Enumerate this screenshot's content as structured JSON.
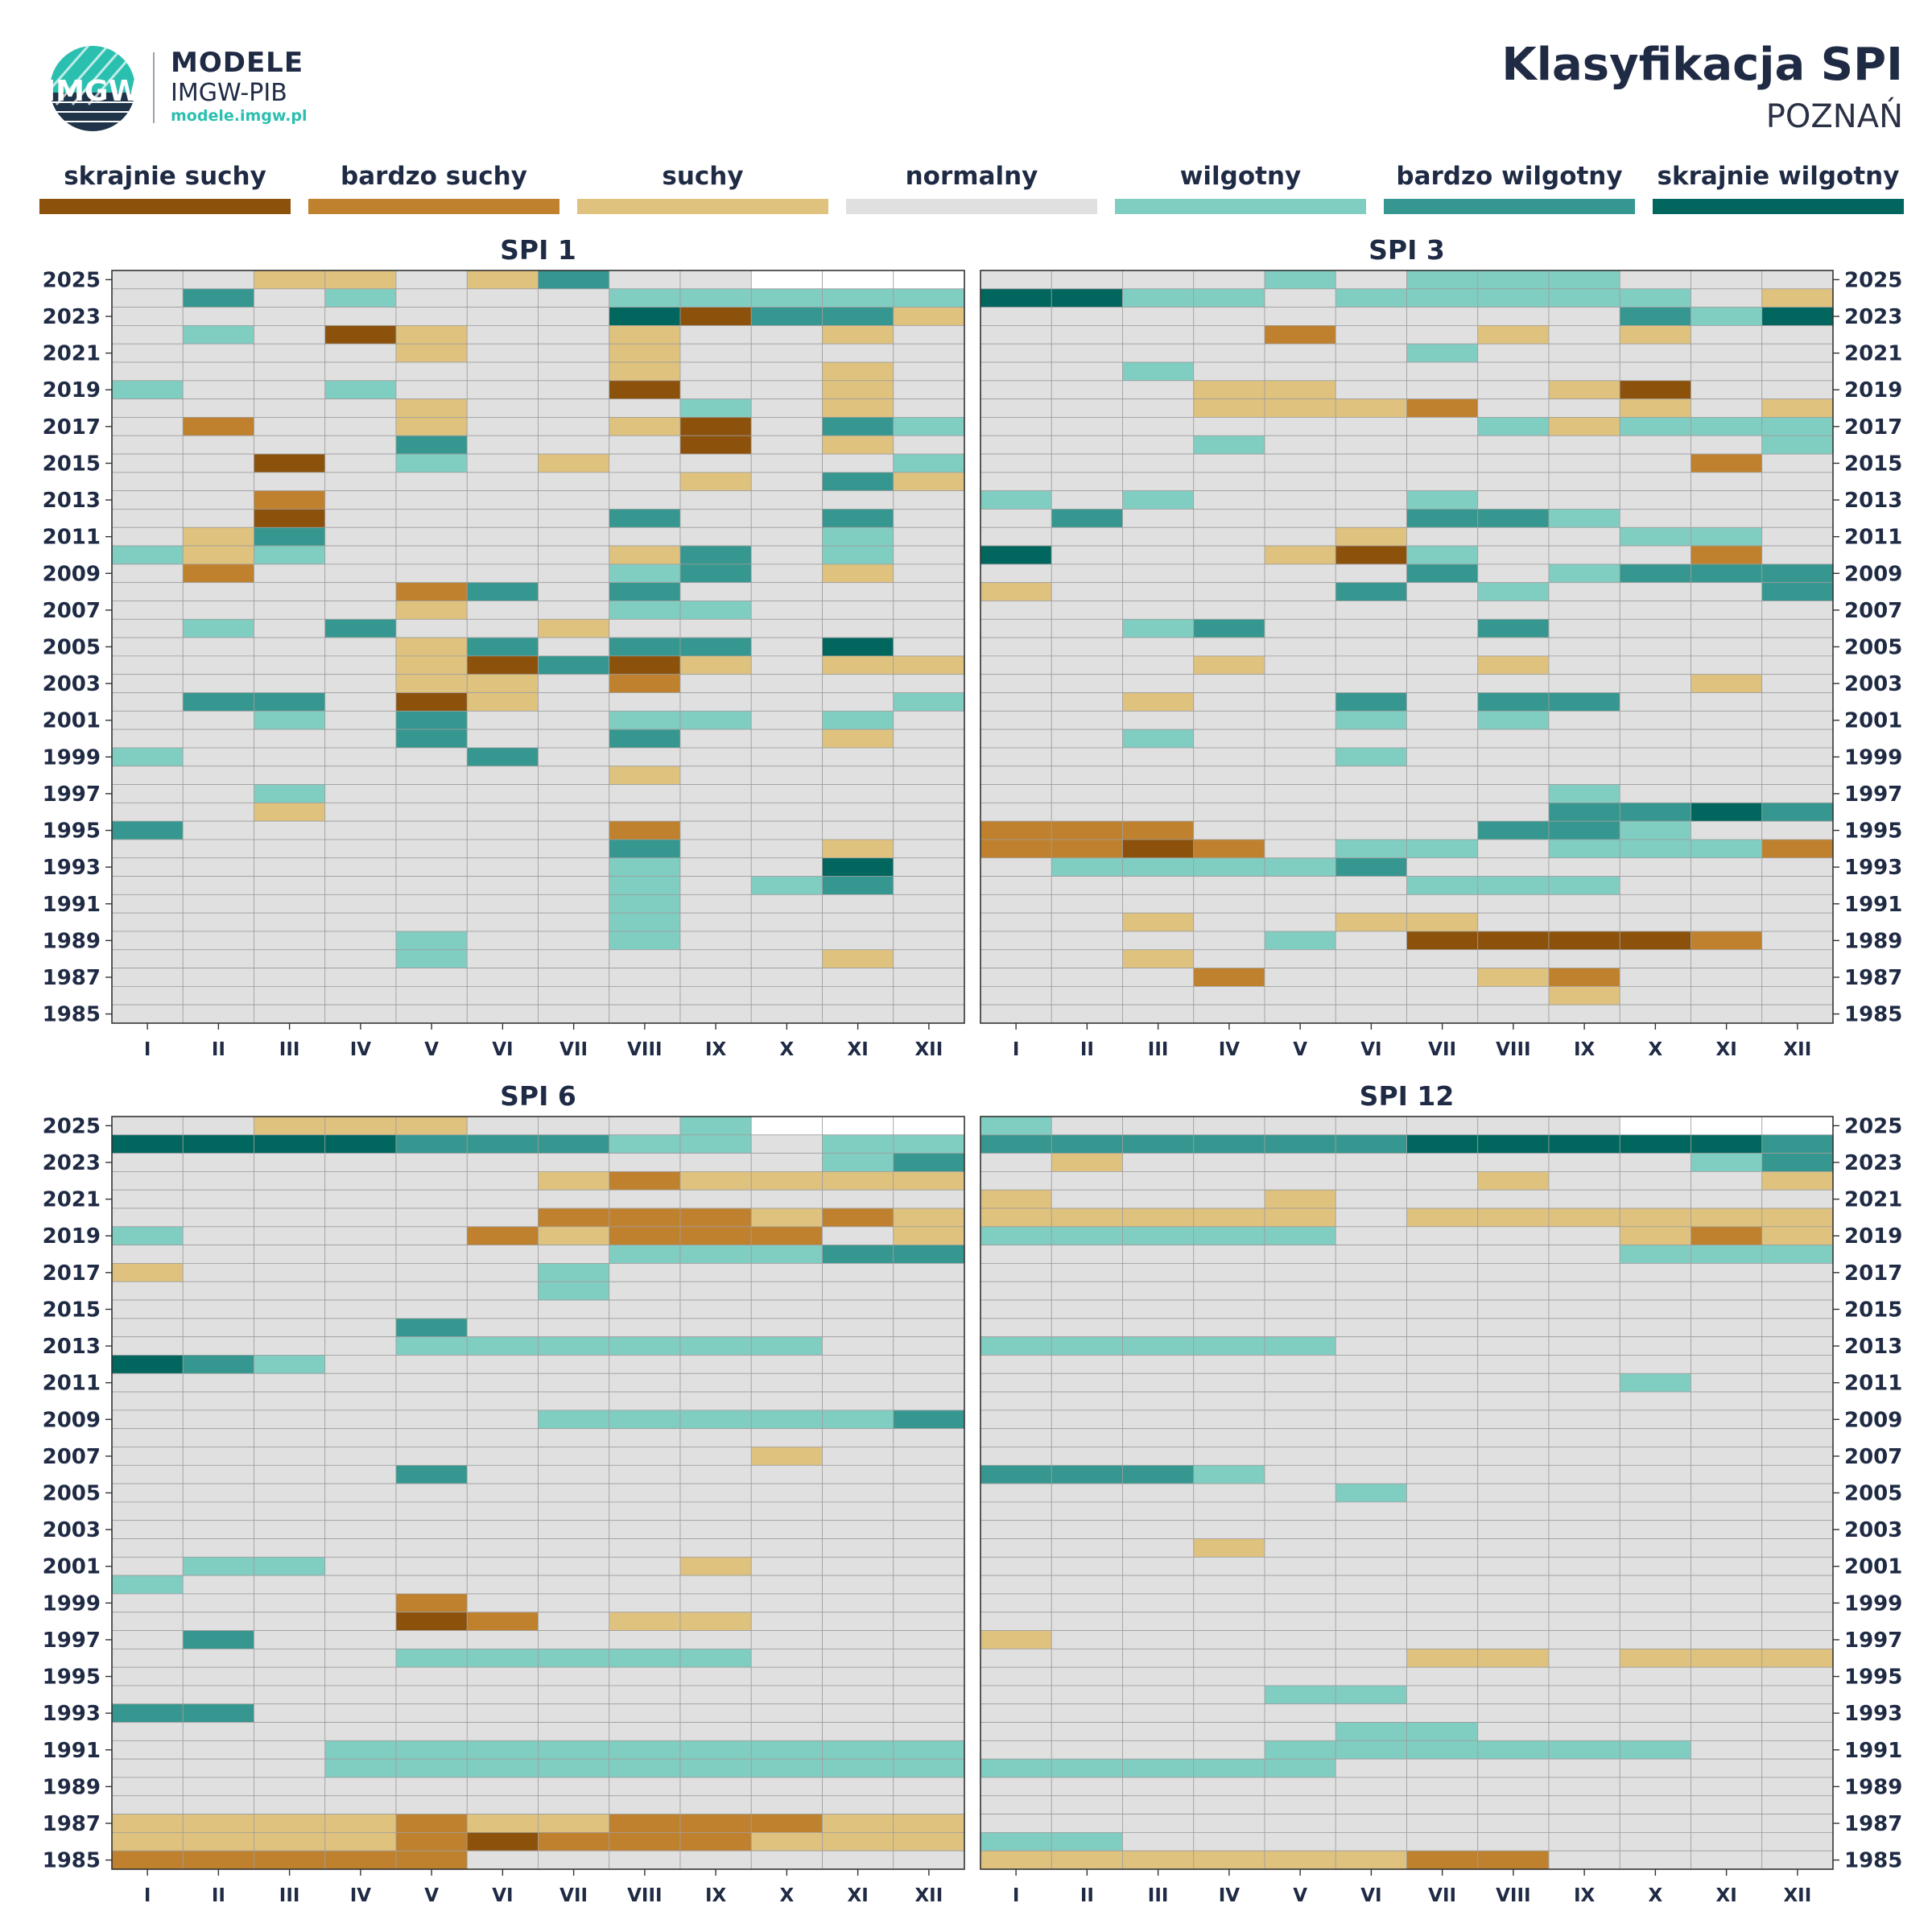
{
  "header": {
    "logo_text": "IMGW",
    "brand_line1": "MODELE",
    "brand_line2": "IMGW-PIB",
    "brand_url": "modele.imgw.pl",
    "title": "Klasyfikacja SPI",
    "subtitle": "POZNAŃ"
  },
  "legend": [
    {
      "label": "skrajnie suchy",
      "color": "#8c510a"
    },
    {
      "label": "bardzo suchy",
      "color": "#bf812d"
    },
    {
      "label": "suchy",
      "color": "#dfc27d"
    },
    {
      "label": "normalny",
      "color": "#e0e0e0"
    },
    {
      "label": "wilgotny",
      "color": "#80cdc1"
    },
    {
      "label": "bardzo wilgotny",
      "color": "#35978f"
    },
    {
      "label": "skrajnie wilgotny",
      "color": "#01665e"
    }
  ],
  "chart_data": [
    {
      "type": "heatmap",
      "title": "SPI 1",
      "x_categories": [
        "I",
        "II",
        "III",
        "IV",
        "V",
        "VI",
        "VII",
        "VIII",
        "IX",
        "X",
        "XI",
        "XII"
      ],
      "y_labels": [
        "2025",
        "2023",
        "2021",
        "2019",
        "2017",
        "2015",
        "2013",
        "2011",
        "2009",
        "2007",
        "2005",
        "2003",
        "2001",
        "1999",
        "1997",
        "1995",
        "1993",
        "1991",
        "1989",
        "1987",
        "1985"
      ],
      "year_range": [
        1985,
        2025
      ],
      "class_key": {
        "0": "no data",
        "1": "skrajnie suchy",
        "2": "bardzo suchy",
        "3": "suchy",
        "4": "normalny",
        "5": "wilgotny",
        "6": "bardzo wilgotny",
        "7": "skrajnie wilgotny"
      },
      "rows_top_to_bottom": [
        "443343644000",
        "464544455555",
        "444444471663",
        "454134434434",
        "444434434444",
        "444444434434",
        "544544414434",
        "444434445434",
        "424434431465",
        "444464441434",
        "441454344445",
        "444444443463",
        "442444444444",
        "441444464464",
        "436444444454",
        "535444436454",
        "424444456434",
        "444426464444",
        "444434455444",
        "454644344444",
        "444436466474",
        "444431613433",
        "444433424444",
        "466413444445",
        "445464455454",
        "444464464434",
        "544446444444",
        "444444434444",
        "445444444444",
        "443444444444",
        "644444424444",
        "444444464434",
        "444444454474",
        "444444454564",
        "444444454444",
        "444444454444",
        "444454454444",
        "444454444434",
        "444444444444",
        "444444444444",
        "444444444444"
      ]
    },
    {
      "type": "heatmap",
      "title": "SPI 3",
      "x_categories": [
        "I",
        "II",
        "III",
        "IV",
        "V",
        "VI",
        "VII",
        "VIII",
        "IX",
        "X",
        "XI",
        "XII"
      ],
      "y_labels": [
        "2025",
        "2023",
        "2021",
        "2019",
        "2017",
        "2015",
        "2013",
        "2011",
        "2009",
        "2007",
        "2005",
        "2003",
        "2001",
        "1999",
        "1997",
        "1995",
        "1993",
        "1991",
        "1989",
        "1987",
        "1985"
      ],
      "year_range": [
        1985,
        2025
      ],
      "class_key": {
        "0": "no data",
        "1": "skrajnie suchy",
        "2": "bardzo suchy",
        "3": "suchy",
        "4": "normalny",
        "5": "wilgotny",
        "6": "bardzo wilgotny",
        "7": "skrajnie wilgotny"
      },
      "rows_top_to_bottom": [
        "444454555444",
        "775545555543",
        "444444444657",
        "444424434344",
        "444444544444",
        "445444444444",
        "444334443144",
        "444333244343",
        "444444453555",
        "444544444445",
        "444444444424",
        "444444444444",
        "545444544444",
        "464444665444",
        "444443444554",
        "744431544424",
        "444444645666",
        "344446454446",
        "444444444444",
        "445644464444",
        "444444444444",
        "444344434444",
        "444444444434",
        "443446466444",
        "444445454444",
        "445444444444",
        "444445444444",
        "444444444444",
        "444444445444",
        "444444446676",
        "222444466544",
        "221245545552",
        "455556444444",
        "444444555444",
        "444444444444",
        "443443344444",
        "444454111124",
        "443444444444",
        "444244432444",
        "444444443444",
        "444444444444"
      ]
    },
    {
      "type": "heatmap",
      "title": "SPI 6",
      "x_categories": [
        "I",
        "II",
        "III",
        "IV",
        "V",
        "VI",
        "VII",
        "VIII",
        "IX",
        "X",
        "XI",
        "XII"
      ],
      "y_labels": [
        "2025",
        "2023",
        "2021",
        "2019",
        "2017",
        "2015",
        "2013",
        "2011",
        "2009",
        "2007",
        "2005",
        "2003",
        "2001",
        "1999",
        "1997",
        "1995",
        "1993",
        "1991",
        "1989",
        "1987",
        "1985"
      ],
      "year_range": [
        1985,
        2025
      ],
      "class_key": {
        "0": "no data",
        "1": "skrajnie suchy",
        "2": "bardzo suchy",
        "3": "suchy",
        "4": "normalny",
        "5": "wilgotny",
        "6": "bardzo wilgotny",
        "7": "skrajnie wilgotny"
      },
      "rows_top_to_bottom": [
        "443334445000",
        "777766655455",
        "444444444456",
        "444444323333",
        "444444444444",
        "444444222323",
        "544442322243",
        "444444455566",
        "344444544444",
        "444444544444",
        "444444444444",
        "444464444444",
        "444455555544",
        "765444444444",
        "444444444444",
        "444444444444",
        "444444555556",
        "444444444444",
        "444444444344",
        "444464444444",
        "444444444444",
        "444444444444",
        "444444444444",
        "444444444444",
        "455444443444",
        "544444444444",
        "444424444444",
        "444412433444",
        "464444444444",
        "444455555444",
        "444444444444",
        "444444444444",
        "664444444444",
        "444444444444",
        "444555555555",
        "444555555555",
        "444444444444",
        "444444444444",
        "333323322233",
        "333321222333",
        "222224444444"
      ]
    },
    {
      "type": "heatmap",
      "title": "SPI 12",
      "x_categories": [
        "I",
        "II",
        "III",
        "IV",
        "V",
        "VI",
        "VII",
        "VIII",
        "IX",
        "X",
        "XI",
        "XII"
      ],
      "y_labels": [
        "2025",
        "2023",
        "2021",
        "2019",
        "2017",
        "2015",
        "2013",
        "2011",
        "2009",
        "2007",
        "2005",
        "2003",
        "2001",
        "1999",
        "1997",
        "1995",
        "1993",
        "1991",
        "1989",
        "1987",
        "1985"
      ],
      "year_range": [
        1985,
        2025
      ],
      "class_key": {
        "0": "no data",
        "1": "skrajnie suchy",
        "2": "bardzo suchy",
        "3": "suchy",
        "4": "normalny",
        "5": "wilgotny",
        "6": "bardzo wilgotny",
        "7": "skrajnie wilgotny"
      },
      "rows_top_to_bottom": [
        "544444444000",
        "666666777776",
        "434444444456",
        "444444434443",
        "344434444444",
        "333334333333",
        "555554444323",
        "444444444555",
        "444444444444",
        "444444444444",
        "444444444444",
        "444444444444",
        "555554444444",
        "444444444444",
        "444444444544",
        "444444444444",
        "444444444444",
        "444444444444",
        "444444444444",
        "666544444444",
        "444445444444",
        "444444444444",
        "444444444444",
        "444344444444",
        "444444444444",
        "444444444444",
        "444444444444",
        "444444444444",
        "344444444444",
        "444444334333",
        "444444444444",
        "444455444444",
        "444444444444",
        "444445544444",
        "444455555544",
        "555554444444",
        "444444444444",
        "444444444444",
        "444444444444",
        "554444444444",
        "333333224444"
      ]
    }
  ]
}
